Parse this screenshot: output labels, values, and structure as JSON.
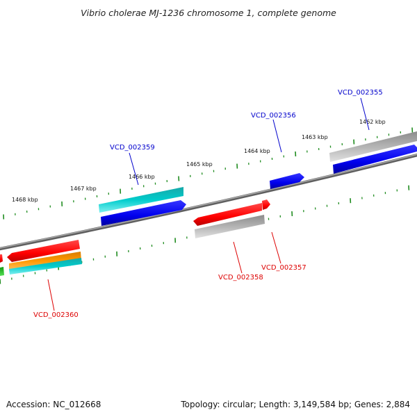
{
  "title": "Vibrio cholerae MJ-1236 chromosome 1, complete genome",
  "footer": {
    "accession": "Accession: NC_012668",
    "summary": "Topology: circular; Length: 3,149,584 bp; Genes: 2,884"
  },
  "colors": {
    "backbone": "#808080",
    "tick": "#1f8c1f",
    "forward_label": "#0000cc",
    "reverse_label": "#dd0000",
    "red": "#ff0000",
    "blue": "#0000ee",
    "cyan": "#00cccc",
    "gray": "#b4b4b4",
    "orange": "#ff9900",
    "green": "#22cc22"
  },
  "scale_labels": [
    "1468 kbp",
    "1467 kbp",
    "1466 kbp",
    "1465 kbp",
    "1464 kbp",
    "1463 kbp",
    "1462 kbp"
  ],
  "gene_labels": {
    "VCD_002355": "VCD_002355",
    "VCD_002356": "VCD_002356",
    "VCD_002357": "VCD_002357",
    "VCD_002358": "VCD_002358",
    "VCD_002359": "VCD_002359",
    "VCD_002360": "VCD_002360"
  }
}
